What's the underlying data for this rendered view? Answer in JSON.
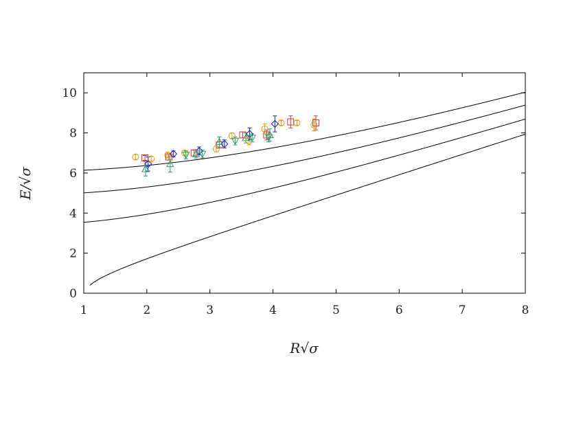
{
  "chart_data": {
    "type": "scatter",
    "title": "",
    "xlabel": "R√σ",
    "ylabel": "E/√σ",
    "xlim": [
      1,
      8
    ],
    "ylim": [
      0,
      11
    ],
    "x_ticks": [
      "1",
      "2",
      "3",
      "4",
      "5",
      "6",
      "7",
      "8"
    ],
    "y_ticks": [
      "0",
      "2",
      "4",
      "6",
      "8",
      "10"
    ],
    "grid": false,
    "legend": "none",
    "curves": [
      {
        "n": 0,
        "color": "#000000"
      },
      {
        "n": 1,
        "color": "#000000"
      },
      {
        "n": 2,
        "color": "#000000"
      },
      {
        "n": 3,
        "color": "#000000"
      }
    ],
    "series": [
      {
        "marker": "circle",
        "color": "#e6a100",
        "points": [
          {
            "x": 1.82,
            "y": 6.8,
            "err": 0.12
          },
          {
            "x": 2.07,
            "y": 6.7,
            "err": 0.12
          },
          {
            "x": 2.33,
            "y": 6.9,
            "err": 0.12
          },
          {
            "x": 2.6,
            "y": 7.0,
            "err": 0.12
          },
          {
            "x": 3.1,
            "y": 7.2,
            "err": 0.15
          },
          {
            "x": 3.35,
            "y": 7.85,
            "err": 0.15
          },
          {
            "x": 3.62,
            "y": 7.6,
            "err": 0.2
          },
          {
            "x": 3.87,
            "y": 8.2,
            "err": 0.25
          },
          {
            "x": 4.13,
            "y": 8.5,
            "err": 0.12
          },
          {
            "x": 4.38,
            "y": 8.5,
            "err": 0.12
          },
          {
            "x": 4.65,
            "y": 8.4,
            "err": 0.3
          }
        ]
      },
      {
        "marker": "square",
        "color": "#e03030",
        "points": [
          {
            "x": 1.97,
            "y": 6.75,
            "err": 0.12
          },
          {
            "x": 2.35,
            "y": 6.8,
            "err": 0.15
          },
          {
            "x": 2.75,
            "y": 7.0,
            "err": 0.15
          },
          {
            "x": 3.15,
            "y": 7.4,
            "err": 0.15
          },
          {
            "x": 3.52,
            "y": 7.9,
            "err": 0.15
          },
          {
            "x": 3.9,
            "y": 7.9,
            "err": 0.25
          },
          {
            "x": 4.28,
            "y": 8.55,
            "err": 0.3
          },
          {
            "x": 4.68,
            "y": 8.5,
            "err": 0.35
          }
        ]
      },
      {
        "marker": "diamond",
        "color": "#1a1acc",
        "points": [
          {
            "x": 2.02,
            "y": 6.45,
            "err": 0.35
          },
          {
            "x": 2.42,
            "y": 6.95,
            "err": 0.15
          },
          {
            "x": 2.83,
            "y": 7.1,
            "err": 0.2
          },
          {
            "x": 3.23,
            "y": 7.45,
            "err": 0.2
          },
          {
            "x": 3.63,
            "y": 7.95,
            "err": 0.3
          },
          {
            "x": 4.03,
            "y": 8.45,
            "err": 0.4
          }
        ]
      },
      {
        "marker": "triangle-up",
        "color": "#22a06b",
        "points": [
          {
            "x": 1.98,
            "y": 6.2,
            "err": 0.35
          },
          {
            "x": 2.37,
            "y": 6.45,
            "err": 0.4
          },
          {
            "x": 2.78,
            "y": 6.95,
            "err": 0.2
          },
          {
            "x": 3.15,
            "y": 7.55,
            "err": 0.25
          },
          {
            "x": 3.57,
            "y": 7.75,
            "err": 0.25
          },
          {
            "x": 3.95,
            "y": 7.9,
            "err": 0.3
          }
        ]
      },
      {
        "marker": "triangle-down",
        "color": "#22a06b",
        "points": [
          {
            "x": 2.62,
            "y": 6.9,
            "err": 0.2
          },
          {
            "x": 2.88,
            "y": 6.95,
            "err": 0.2
          },
          {
            "x": 3.4,
            "y": 7.6,
            "err": 0.2
          },
          {
            "x": 3.67,
            "y": 7.75,
            "err": 0.2
          },
          {
            "x": 3.93,
            "y": 7.8,
            "err": 0.25
          }
        ]
      }
    ]
  }
}
